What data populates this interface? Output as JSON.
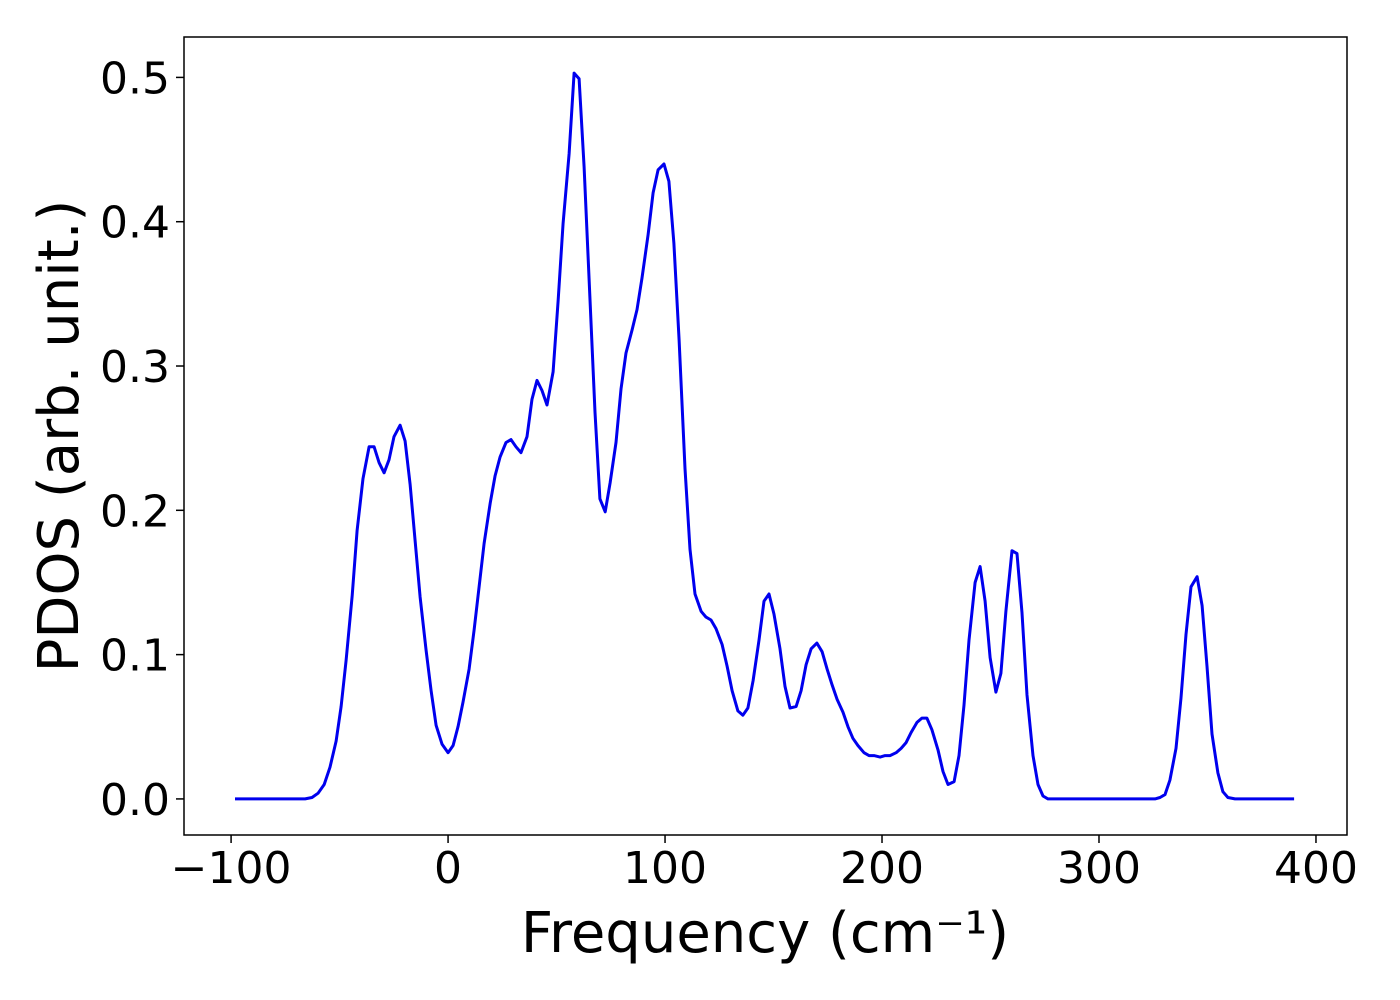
{
  "chart_data": {
    "type": "line",
    "xlabel": "Frequency (cm⁻¹)",
    "ylabel": "PDOS (arb. unit.)",
    "xlim": [
      -121.7,
      414.3
    ],
    "ylim": [
      -0.025,
      0.528
    ],
    "xticks": [
      {
        "value": -100,
        "label": "−100"
      },
      0,
      100,
      200,
      300,
      400
    ],
    "yticks": [
      {
        "value": 0,
        "label": "0.0"
      },
      0.1,
      0.2,
      0.3,
      0.4,
      0.5
    ],
    "series": [
      {
        "color": "#0000ee",
        "x": [
          -98.2,
          -65.9,
          -62.7,
          -59.9,
          -57.1,
          -54.4,
          -51.6,
          -49.3,
          -47.0,
          -44.2,
          -41.9,
          -39.2,
          -36.4,
          -34.1,
          -31.8,
          -29.5,
          -27.2,
          -24.9,
          -22.1,
          -19.8,
          -17.5,
          -15.2,
          -12.9,
          -10.1,
          -7.8,
          -5.5,
          -2.8,
          0,
          2.3,
          4.6,
          6.9,
          9.7,
          12.0,
          14.3,
          16.6,
          19.4,
          21.7,
          24.0,
          26.7,
          29.0,
          31.3,
          33.6,
          36.4,
          38.7,
          41.0,
          43.3,
          45.6,
          48.4,
          50.7,
          53.0,
          55.8,
          58.1,
          60.4,
          62.7,
          65.4,
          67.7,
          70.0,
          72.4,
          74.7,
          77.4,
          79.7,
          82.0,
          84.8,
          87.1,
          89.4,
          92.2,
          94.5,
          96.8,
          99.5,
          101.8,
          104.1,
          106.5,
          109.2,
          111.5,
          113.8,
          116.6,
          118.9,
          121.2,
          123.5,
          126.3,
          128.6,
          130.9,
          133.6,
          135.9,
          138.2,
          140.6,
          143.3,
          145.6,
          147.9,
          150.2,
          153.0,
          155.3,
          157.6,
          160.4,
          162.7,
          165.0,
          167.3,
          170.0,
          172.4,
          174.7,
          177.0,
          179.3,
          182.0,
          184.3,
          186.6,
          188.9,
          191.7,
          194.0,
          196.3,
          199.1,
          201.4,
          203.7,
          206.5,
          208.8,
          211.1,
          213.4,
          216.1,
          218.4,
          220.7,
          223.0,
          225.8,
          228.1,
          230.4,
          233.2,
          235.5,
          237.8,
          240.1,
          242.9,
          245.2,
          247.5,
          249.8,
          252.5,
          254.8,
          257.1,
          259.9,
          262.2,
          264.5,
          266.8,
          269.6,
          271.9,
          274.2,
          276.5,
          279.7,
          325.8,
          328.1,
          330.4,
          332.7,
          335.5,
          337.8,
          340.1,
          342.4,
          345.2,
          347.5,
          349.8,
          352.1,
          354.8,
          357.1,
          359.4,
          362.7,
          389.9
        ],
        "values": [
          0,
          0,
          0.001,
          0.004,
          0.01,
          0.022,
          0.04,
          0.064,
          0.096,
          0.141,
          0.186,
          0.222,
          0.244,
          0.244,
          0.233,
          0.226,
          0.235,
          0.251,
          0.259,
          0.248,
          0.218,
          0.179,
          0.14,
          0.103,
          0.075,
          0.051,
          0.038,
          0.032,
          0.037,
          0.05,
          0.067,
          0.09,
          0.117,
          0.147,
          0.177,
          0.205,
          0.224,
          0.237,
          0.247,
          0.249,
          0.244,
          0.24,
          0.251,
          0.277,
          0.29,
          0.283,
          0.273,
          0.296,
          0.345,
          0.399,
          0.447,
          0.503,
          0.499,
          0.438,
          0.346,
          0.268,
          0.208,
          0.199,
          0.219,
          0.247,
          0.284,
          0.309,
          0.325,
          0.339,
          0.361,
          0.391,
          0.42,
          0.436,
          0.44,
          0.428,
          0.385,
          0.318,
          0.229,
          0.173,
          0.142,
          0.13,
          0.126,
          0.124,
          0.118,
          0.107,
          0.092,
          0.075,
          0.061,
          0.058,
          0.063,
          0.082,
          0.11,
          0.137,
          0.142,
          0.128,
          0.104,
          0.078,
          0.063,
          0.064,
          0.075,
          0.093,
          0.104,
          0.108,
          0.102,
          0.09,
          0.079,
          0.069,
          0.06,
          0.05,
          0.042,
          0.037,
          0.032,
          0.03,
          0.03,
          0.029,
          0.03,
          0.03,
          0.032,
          0.035,
          0.039,
          0.046,
          0.053,
          0.056,
          0.056,
          0.048,
          0.034,
          0.019,
          0.01,
          0.012,
          0.03,
          0.065,
          0.11,
          0.15,
          0.161,
          0.137,
          0.098,
          0.074,
          0.087,
          0.13,
          0.172,
          0.17,
          0.129,
          0.072,
          0.03,
          0.01,
          0.002,
          0,
          0,
          0,
          0.001,
          0.003,
          0.013,
          0.035,
          0.07,
          0.114,
          0.147,
          0.154,
          0.134,
          0.092,
          0.045,
          0.018,
          0.005,
          0.001,
          0,
          0
        ]
      }
    ]
  }
}
